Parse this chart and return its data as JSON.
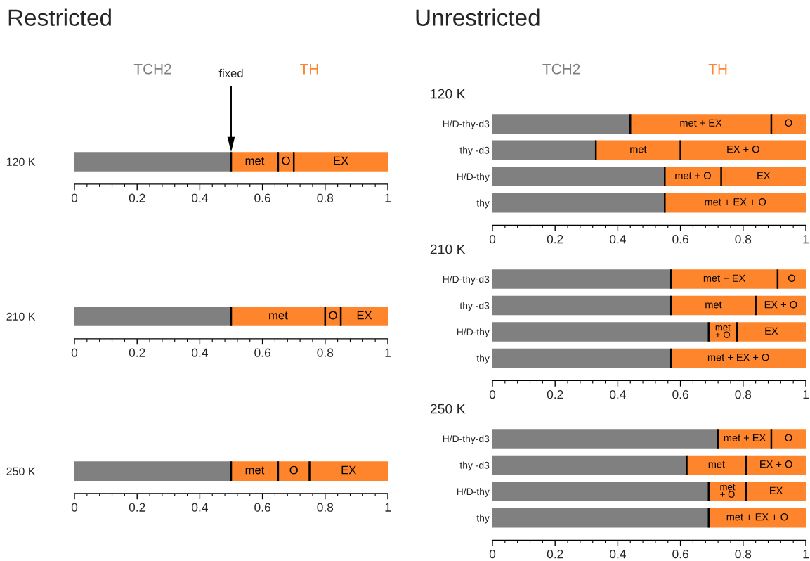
{
  "chart_data": [
    {
      "type": "bar",
      "orientation": "horizontal",
      "stacked": true,
      "title": "Restricted",
      "legend": "top",
      "categories": [
        "120 K"
      ],
      "xlim": [
        0,
        1
      ],
      "xticks": [
        0,
        {
          "value": 0.04,
          "label": null
        },
        {
          "value": 0.08,
          "label": null
        },
        {
          "value": 0.12,
          "label": null
        },
        {
          "value": 0.16,
          "label": null
        },
        0.2,
        {
          "value": 0.24,
          "label": null
        },
        {
          "value": 0.28,
          "label": null
        },
        {
          "value": 0.32,
          "label": null
        },
        {
          "value": 0.36,
          "label": null
        },
        0.4,
        {
          "value": 0.44,
          "label": null
        },
        {
          "value": 0.48,
          "label": null
        },
        {
          "value": 0.52,
          "label": null
        },
        {
          "value": 0.56,
          "label": null
        },
        0.6,
        {
          "value": 0.64,
          "label": null
        },
        {
          "value": 0.68,
          "label": null
        },
        {
          "value": 0.72,
          "label": null
        },
        {
          "value": 0.76,
          "label": null
        },
        0.8,
        {
          "value": 0.84,
          "label": null
        },
        {
          "value": 0.88,
          "label": null
        },
        {
          "value": 0.92,
          "label": null
        },
        {
          "value": 0.96,
          "label": null
        },
        1
      ],
      "annotations": [
        "fixed"
      ],
      "series": [
        {
          "name": "TCH2",
          "color": "#808080",
          "values": [
            0.5
          ]
        },
        {
          "name": "TH",
          "color": "#ff852d",
          "values": [
            0.15
          ],
          "value_labels": [
            "met"
          ]
        },
        {
          "color": "#ff852d",
          "values": [
            0.05
          ],
          "value_labels": [
            "O"
          ]
        },
        {
          "color": "#ff852d",
          "values": [
            0.3
          ],
          "value_labels": [
            "EX"
          ]
        }
      ]
    },
    {
      "type": "bar",
      "orientation": "horizontal",
      "stacked": true,
      "categories": [
        "210 K"
      ],
      "xlim": [
        0,
        1
      ],
      "xticks": [
        0,
        {
          "value": 0.04,
          "label": null
        },
        {
          "value": 0.08,
          "label": null
        },
        {
          "value": 0.12,
          "label": null
        },
        {
          "value": 0.16,
          "label": null
        },
        0.2,
        {
          "value": 0.24,
          "label": null
        },
        {
          "value": 0.28,
          "label": null
        },
        {
          "value": 0.32,
          "label": null
        },
        {
          "value": 0.36,
          "label": null
        },
        0.4,
        {
          "value": 0.44,
          "label": null
        },
        {
          "value": 0.48,
          "label": null
        },
        {
          "value": 0.52,
          "label": null
        },
        {
          "value": 0.56,
          "label": null
        },
        0.6,
        {
          "value": 0.64,
          "label": null
        },
        {
          "value": 0.68,
          "label": null
        },
        {
          "value": 0.72,
          "label": null
        },
        {
          "value": 0.76,
          "label": null
        },
        0.8,
        {
          "value": 0.84,
          "label": null
        },
        {
          "value": 0.88,
          "label": null
        },
        {
          "value": 0.92,
          "label": null
        },
        {
          "value": 0.96,
          "label": null
        },
        1
      ],
      "series": [
        {
          "color": "#808080",
          "values": [
            0.5
          ]
        },
        {
          "color": "#ff852d",
          "values": [
            0.3
          ],
          "value_labels": [
            "met"
          ]
        },
        {
          "color": "#ff852d",
          "values": [
            0.05
          ],
          "value_labels": [
            "O"
          ]
        },
        {
          "color": "#ff852d",
          "values": [
            0.15
          ],
          "value_labels": [
            "EX"
          ]
        }
      ]
    },
    {
      "type": "bar",
      "orientation": "horizontal",
      "stacked": true,
      "categories": [
        "250 K"
      ],
      "xlim": [
        0,
        1
      ],
      "xticks": [
        0,
        {
          "value": 0.04,
          "label": null
        },
        {
          "value": 0.08,
          "label": null
        },
        {
          "value": 0.12,
          "label": null
        },
        {
          "value": 0.16,
          "label": null
        },
        0.2,
        {
          "value": 0.24,
          "label": null
        },
        {
          "value": 0.28,
          "label": null
        },
        {
          "value": 0.32,
          "label": null
        },
        {
          "value": 0.36,
          "label": null
        },
        0.4,
        {
          "value": 0.44,
          "label": null
        },
        {
          "value": 0.48,
          "label": null
        },
        {
          "value": 0.52,
          "label": null
        },
        {
          "value": 0.56,
          "label": null
        },
        0.6,
        {
          "value": 0.64,
          "label": null
        },
        {
          "value": 0.68,
          "label": null
        },
        {
          "value": 0.72,
          "label": null
        },
        {
          "value": 0.76,
          "label": null
        },
        0.8,
        {
          "value": 0.84,
          "label": null
        },
        {
          "value": 0.88,
          "label": null
        },
        {
          "value": 0.92,
          "label": null
        },
        {
          "value": 0.96,
          "label": null
        },
        1
      ],
      "series": [
        {
          "color": "#808080",
          "values": [
            0.5
          ]
        },
        {
          "color": "#ff852d",
          "values": [
            0.15
          ],
          "value_labels": [
            "met"
          ]
        },
        {
          "color": "#ff852d",
          "values": [
            0.1
          ],
          "value_labels": [
            "O"
          ]
        },
        {
          "color": "#ff852d",
          "values": [
            0.25
          ],
          "value_labels": [
            "EX"
          ]
        }
      ]
    },
    {
      "type": "bar",
      "orientation": "horizontal",
      "stacked": true,
      "title": "Unrestricted",
      "subtitle": "120 K",
      "legend": "top",
      "categories": [
        "H/D-thy-d3",
        "thy -d3",
        "H/D-thy",
        "thy"
      ],
      "xlim": [
        0,
        1
      ],
      "xticks": [
        0,
        {
          "value": 0.04,
          "label": null
        },
        {
          "value": 0.08,
          "label": null
        },
        {
          "value": 0.12,
          "label": null
        },
        {
          "value": 0.16,
          "label": null
        },
        0.2,
        {
          "value": 0.24,
          "label": null
        },
        {
          "value": 0.28,
          "label": null
        },
        {
          "value": 0.32,
          "label": null
        },
        {
          "value": 0.36,
          "label": null
        },
        0.4,
        {
          "value": 0.44,
          "label": null
        },
        {
          "value": 0.48,
          "label": null
        },
        {
          "value": 0.52,
          "label": null
        },
        {
          "value": 0.56,
          "label": null
        },
        0.6,
        {
          "value": 0.64,
          "label": null
        },
        {
          "value": 0.68,
          "label": null
        },
        {
          "value": 0.72,
          "label": null
        },
        {
          "value": 0.76,
          "label": null
        },
        0.8,
        {
          "value": 0.84,
          "label": null
        },
        {
          "value": 0.88,
          "label": null
        },
        {
          "value": 0.92,
          "label": null
        },
        {
          "value": 0.96,
          "label": null
        },
        1
      ],
      "series": [
        {
          "name": "TCH2",
          "color": "#808080",
          "values": [
            0.44,
            0.33,
            0.55,
            0.55
          ]
        },
        {
          "name": "TH",
          "color": "#ff852d",
          "values": [
            0.45,
            0.27,
            0.18,
            0.45
          ],
          "value_labels": [
            "met + EX",
            "met",
            "met + O",
            "met + EX + O"
          ]
        },
        {
          "color": "#ff852d",
          "values": [
            0.11,
            0.4,
            0.27,
            null
          ],
          "value_labels": [
            "O",
            "EX + O",
            "EX",
            null
          ]
        }
      ]
    },
    {
      "type": "bar",
      "orientation": "horizontal",
      "stacked": true,
      "subtitle": "210 K",
      "categories": [
        "H/D-thy-d3",
        "thy -d3",
        "H/D-thy",
        "thy"
      ],
      "xlim": [
        0,
        1
      ],
      "xticks": [
        0,
        {
          "value": 0.04,
          "label": null
        },
        {
          "value": 0.08,
          "label": null
        },
        {
          "value": 0.12,
          "label": null
        },
        {
          "value": 0.16,
          "label": null
        },
        0.2,
        {
          "value": 0.24,
          "label": null
        },
        {
          "value": 0.28,
          "label": null
        },
        {
          "value": 0.32,
          "label": null
        },
        {
          "value": 0.36,
          "label": null
        },
        0.4,
        {
          "value": 0.44,
          "label": null
        },
        {
          "value": 0.48,
          "label": null
        },
        {
          "value": 0.52,
          "label": null
        },
        {
          "value": 0.56,
          "label": null
        },
        0.6,
        {
          "value": 0.64,
          "label": null
        },
        {
          "value": 0.68,
          "label": null
        },
        {
          "value": 0.72,
          "label": null
        },
        {
          "value": 0.76,
          "label": null
        },
        0.8,
        {
          "value": 0.84,
          "label": null
        },
        {
          "value": 0.88,
          "label": null
        },
        {
          "value": 0.92,
          "label": null
        },
        {
          "value": 0.96,
          "label": null
        },
        1
      ],
      "series": [
        {
          "color": "#808080",
          "values": [
            0.57,
            0.57,
            0.69,
            0.57
          ]
        },
        {
          "color": "#ff852d",
          "values": [
            0.34,
            0.27,
            0.09,
            0.43
          ],
          "value_labels": [
            "met + EX",
            "met",
            "met + O",
            "met + EX + O"
          ]
        },
        {
          "color": "#ff852d",
          "values": [
            0.09,
            0.16,
            0.22,
            null
          ],
          "value_labels": [
            "O",
            "EX + O",
            "EX",
            null
          ]
        }
      ]
    },
    {
      "type": "bar",
      "orientation": "horizontal",
      "stacked": true,
      "subtitle": "250 K",
      "categories": [
        "H/D-thy-d3",
        "thy -d3",
        "H/D-thy",
        "thy"
      ],
      "xlim": [
        0,
        1
      ],
      "xticks": [
        0,
        {
          "value": 0.04,
          "label": null
        },
        {
          "value": 0.08,
          "label": null
        },
        {
          "value": 0.12,
          "label": null
        },
        {
          "value": 0.16,
          "label": null
        },
        0.2,
        {
          "value": 0.24,
          "label": null
        },
        {
          "value": 0.28,
          "label": null
        },
        {
          "value": 0.32,
          "label": null
        },
        {
          "value": 0.36,
          "label": null
        },
        0.4,
        {
          "value": 0.44,
          "label": null
        },
        {
          "value": 0.48,
          "label": null
        },
        {
          "value": 0.52,
          "label": null
        },
        {
          "value": 0.56,
          "label": null
        },
        0.6,
        {
          "value": 0.64,
          "label": null
        },
        {
          "value": 0.68,
          "label": null
        },
        {
          "value": 0.72,
          "label": null
        },
        {
          "value": 0.76,
          "label": null
        },
        0.8,
        {
          "value": 0.84,
          "label": null
        },
        {
          "value": 0.88,
          "label": null
        },
        {
          "value": 0.92,
          "label": null
        },
        {
          "value": 0.96,
          "label": null
        },
        1
      ],
      "series": [
        {
          "color": "#808080",
          "values": [
            0.72,
            0.62,
            0.69,
            0.69
          ]
        },
        {
          "color": "#ff852d",
          "values": [
            0.17,
            0.19,
            0.12,
            0.31
          ],
          "value_labels": [
            "met + EX",
            "met",
            "met + O",
            "met + EX + O"
          ]
        },
        {
          "color": "#ff852d",
          "values": [
            0.11,
            0.19,
            0.19,
            null
          ],
          "value_labels": [
            "O",
            "EX + O",
            "EX",
            null
          ]
        }
      ]
    }
  ]
}
